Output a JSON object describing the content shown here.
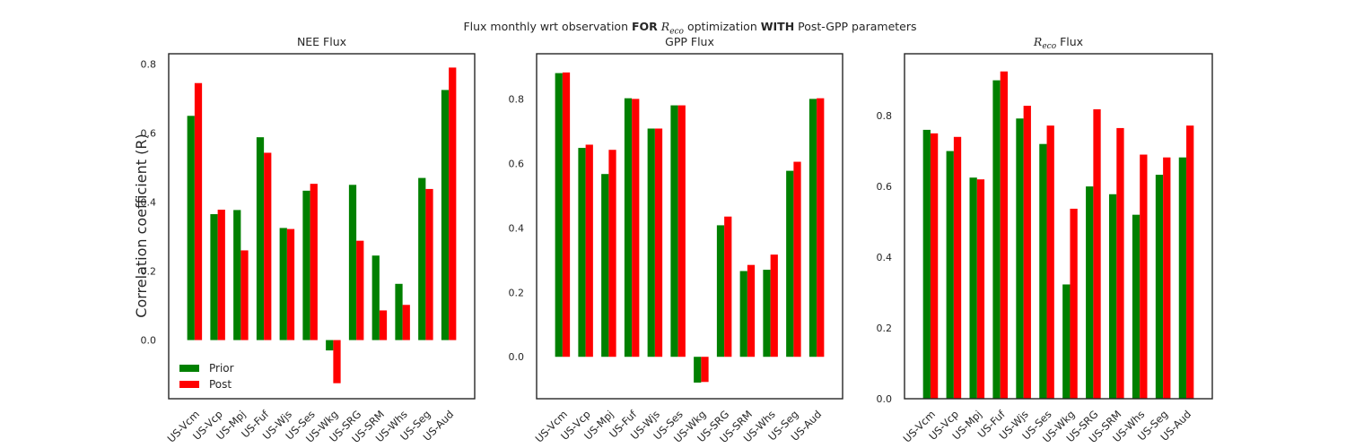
{
  "figure": {
    "title_pre": "Flux monthly wrt observation",
    "title_for": "FOR",
    "title_r": "R",
    "title_sub": "eco",
    "title_mid": "optimization",
    "title_with": "WITH",
    "title_post": "Post-GPP parameters",
    "shared_ylabel": "Correlation coefficient (R)"
  },
  "colors": {
    "prior": "#008000",
    "post": "#ff0000",
    "axes": "#262626"
  },
  "chart_data": [
    {
      "type": "bar",
      "title": "NEE Flux",
      "title_math": "",
      "categories": [
        "US-Vcm",
        "US-Vcp",
        "US-Mpj",
        "US-Fuf",
        "US-Wjs",
        "US-Ses",
        "US-Wkg",
        "US-SRG",
        "US-SRM",
        "US-Whs",
        "US-Seg",
        "US-Aud"
      ],
      "series": [
        {
          "name": "Prior",
          "values": [
            0.65,
            0.365,
            0.377,
            0.588,
            0.325,
            0.433,
            -0.03,
            0.45,
            0.245,
            0.163,
            0.47,
            0.725
          ]
        },
        {
          "name": "Post",
          "values": [
            0.745,
            0.378,
            0.26,
            0.543,
            0.322,
            0.453,
            -0.125,
            0.288,
            0.086,
            0.102,
            0.438,
            0.79
          ]
        }
      ],
      "yticks": [
        0.0,
        0.2,
        0.4,
        0.6,
        0.8
      ],
      "ylim": [
        -0.17,
        0.83
      ],
      "legend": "lower-left",
      "grid": false
    },
    {
      "type": "bar",
      "title": "GPP Flux",
      "title_math": "",
      "categories": [
        "US-Vcm",
        "US-Vcp",
        "US-Mpj",
        "US-Fuf",
        "US-Wjs",
        "US-Ses",
        "US-Wkg",
        "US-SRG",
        "US-SRM",
        "US-Whs",
        "US-Seg",
        "US-Aud"
      ],
      "series": [
        {
          "name": "Prior",
          "values": [
            0.88,
            0.648,
            0.567,
            0.802,
            0.708,
            0.78,
            -0.08,
            0.408,
            0.266,
            0.27,
            0.577,
            0.8
          ]
        },
        {
          "name": "Post",
          "values": [
            0.882,
            0.658,
            0.642,
            0.8,
            0.708,
            0.78,
            -0.078,
            0.435,
            0.285,
            0.317,
            0.605,
            0.802
          ]
        }
      ],
      "yticks": [
        0.0,
        0.2,
        0.4,
        0.6,
        0.8
      ],
      "ylim": [
        -0.13,
        0.94
      ],
      "legend": "none",
      "grid": false
    },
    {
      "type": "bar",
      "title": "Flux",
      "title_math": "R",
      "title_math_sub": "eco",
      "categories": [
        "US-Vcm",
        "US-Vcp",
        "US-Mpj",
        "US-Fuf",
        "US-Wjs",
        "US-Ses",
        "US-Wkg",
        "US-SRG",
        "US-SRM",
        "US-Whs",
        "US-Seg",
        "US-Aud"
      ],
      "series": [
        {
          "name": "Prior",
          "values": [
            0.76,
            0.7,
            0.625,
            0.9,
            0.792,
            0.72,
            0.323,
            0.6,
            0.578,
            0.52,
            0.633,
            0.682
          ]
        },
        {
          "name": "Post",
          "values": [
            0.75,
            0.74,
            0.62,
            0.925,
            0.828,
            0.772,
            0.537,
            0.818,
            0.765,
            0.69,
            0.682,
            0.772
          ]
        }
      ],
      "yticks": [
        0.0,
        0.2,
        0.4,
        0.6,
        0.8
      ],
      "ylim": [
        0.0,
        0.975
      ],
      "legend": "none",
      "grid": false
    }
  ]
}
